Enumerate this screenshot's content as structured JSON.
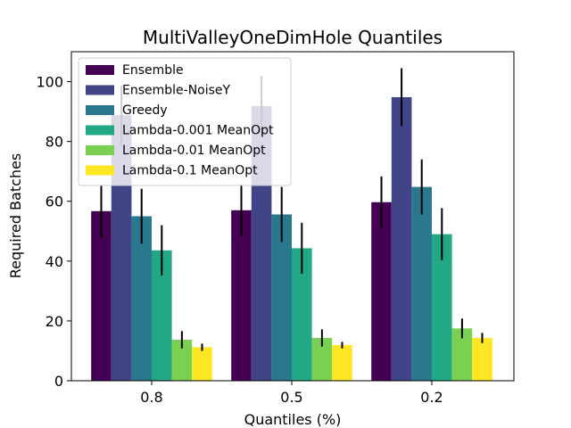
{
  "chart_data": {
    "type": "bar",
    "title": "MultiValleyOneDimHole Quantiles",
    "xlabel": "Quantiles (%)",
    "ylabel": "Required Batches",
    "categories": [
      "0.8",
      "0.5",
      "0.2"
    ],
    "ylim": [
      0,
      110
    ],
    "yticks": [
      0,
      20,
      40,
      60,
      80,
      100
    ],
    "grid": false,
    "legend_position": "top-left",
    "series": [
      {
        "name": "Ensemble",
        "color": "#440154",
        "values": [
          56.7,
          57.0,
          59.7
        ],
        "errors": [
          8.8,
          8.7,
          8.6
        ]
      },
      {
        "name": "Ensemble-NoiseY",
        "color": "#414487",
        "values": [
          88.8,
          91.8,
          94.8
        ],
        "errors": [
          10.0,
          10.1,
          9.7
        ]
      },
      {
        "name": "Greedy",
        "color": "#2a788e",
        "values": [
          55.0,
          55.6,
          64.8
        ],
        "errors": [
          9.2,
          9.2,
          9.2
        ]
      },
      {
        "name": "Lambda-0.001 MeanOpt",
        "color": "#22a884",
        "values": [
          43.6,
          44.3,
          49.0
        ],
        "errors": [
          8.4,
          8.5,
          8.7
        ]
      },
      {
        "name": "Lambda-0.01 MeanOpt",
        "color": "#7ad151",
        "values": [
          13.7,
          14.3,
          17.5
        ],
        "errors": [
          2.9,
          2.9,
          3.3
        ]
      },
      {
        "name": "Lambda-0.1 MeanOpt",
        "color": "#fde725",
        "values": [
          11.2,
          11.9,
          14.3
        ],
        "errors": [
          1.2,
          1.1,
          1.7
        ]
      }
    ]
  }
}
